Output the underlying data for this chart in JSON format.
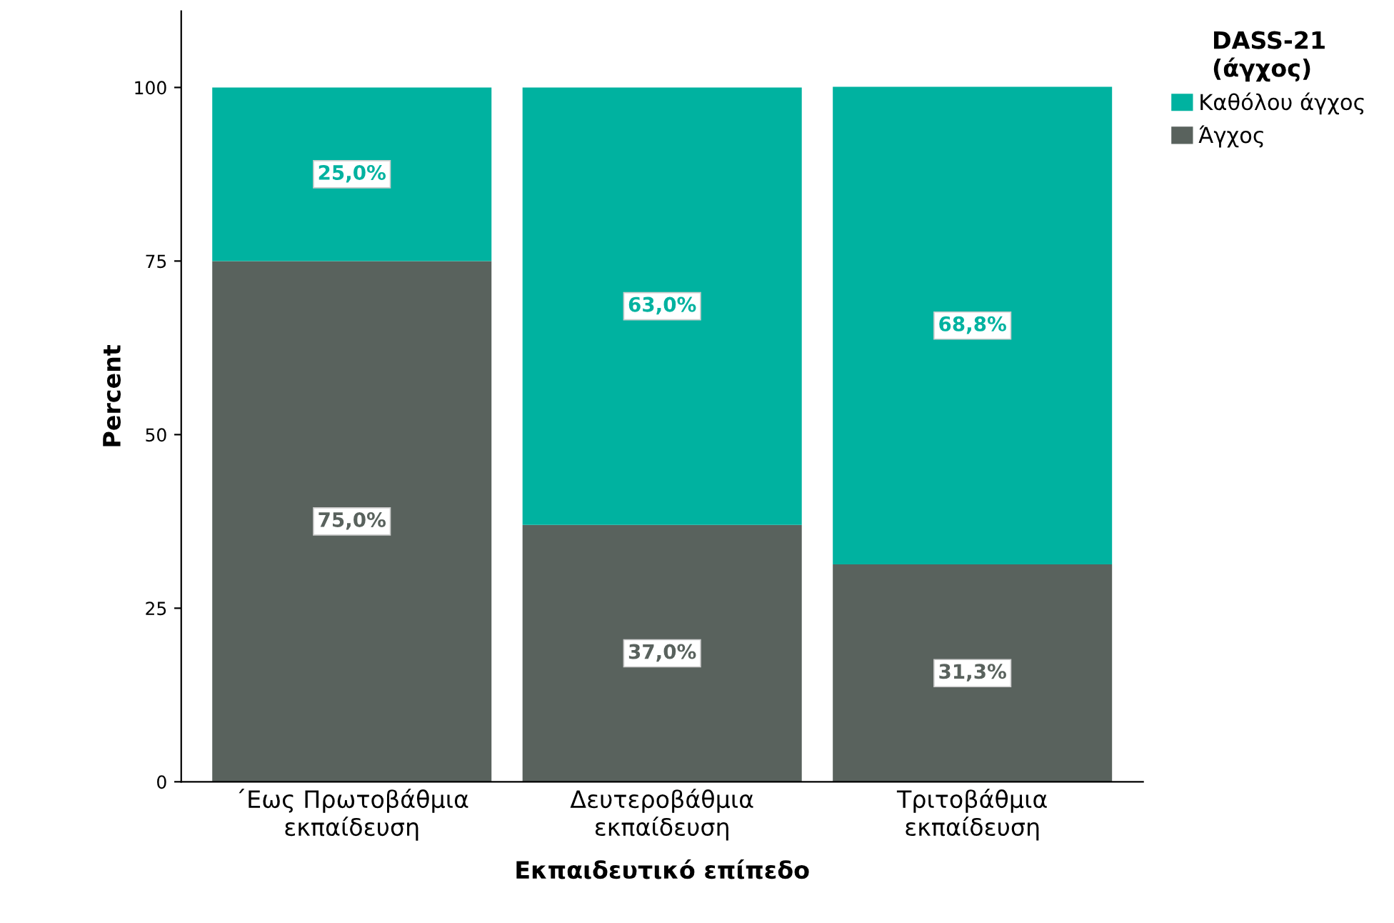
{
  "chart_data": {
    "type": "bar",
    "stacked": true,
    "xlabel": "Εκπαιδευτικό επίπεδο",
    "ylabel": "Percent",
    "legend_title": "DASS-21\n(άγχος)",
    "legend": "top right",
    "categories": [
      "΄Εως Πρωτοβάθμια\nεκπαίδευση",
      "Δευτεροβάθμια\nεκπαίδευση",
      "Τριτοβάθμια\nεκπαίδευση"
    ],
    "series": [
      {
        "name": "Άγχος",
        "color": "#59625d",
        "values": [
          75.0,
          37.0,
          31.3
        ],
        "value_labels": [
          "75,0%",
          "37,0%",
          "31,3%"
        ]
      },
      {
        "name": "Καθόλου άγχος",
        "color": "#00b2a0",
        "values": [
          25.0,
          63.0,
          68.8
        ],
        "value_labels": [
          "25,0%",
          "63,0%",
          "68,8%"
        ]
      }
    ],
    "ylim": [
      0,
      111
    ],
    "yticks": [
      0,
      25,
      50,
      75,
      100
    ],
    "grid": false
  }
}
